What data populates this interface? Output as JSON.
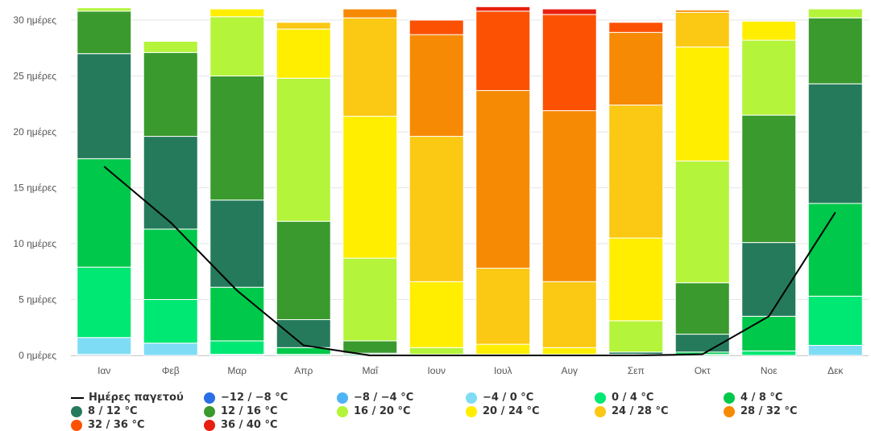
{
  "chart_data": {
    "type": "bar",
    "stacked": true,
    "categories": [
      "Ιαν",
      "Φεβ",
      "Μαρ",
      "Απρ",
      "Μαΐ",
      "Ιουν",
      "Ιουλ",
      "Αυγ",
      "Σεπ",
      "Οκτ",
      "Νοε",
      "Δεκ"
    ],
    "ylim": [
      0,
      31
    ],
    "yticks": [
      "0 ημέρες",
      "5 ημέρες",
      "10 ημέρες",
      "15 ημέρες",
      "20 ημέρες",
      "25 ημέρες",
      "30 ημέρες"
    ],
    "ytick_values": [
      0,
      5,
      10,
      15,
      20,
      25,
      30
    ],
    "series": [
      {
        "name": "−12 / −8 °C",
        "color": "#2b6fe6",
        "values": [
          0,
          0,
          0,
          0,
          0,
          0,
          0,
          0,
          0,
          0,
          0,
          0
        ]
      },
      {
        "name": "−8 / −4 °C",
        "color": "#4fb4f5",
        "values": [
          0.1,
          0,
          0,
          0,
          0,
          0,
          0,
          0,
          0,
          0,
          0,
          0
        ]
      },
      {
        "name": "−4 / 0 °C",
        "color": "#7fdcf5",
        "values": [
          1.5,
          1.1,
          0.1,
          0,
          0,
          0,
          0,
          0,
          0,
          0,
          0,
          0.9
        ]
      },
      {
        "name": "0 / 4 °C",
        "color": "#00e874",
        "values": [
          6.3,
          3.9,
          1.2,
          0.1,
          0,
          0,
          0,
          0,
          0,
          0.1,
          0.4,
          4.4
        ]
      },
      {
        "name": "4 / 8 °C",
        "color": "#00c84a",
        "values": [
          9.7,
          6.3,
          4.8,
          0.6,
          0.1,
          0,
          0,
          0,
          0.1,
          0.2,
          3.1,
          8.3
        ]
      },
      {
        "name": "8 / 12 °C",
        "color": "#257a5c",
        "values": [
          9.4,
          8.3,
          7.8,
          2.5,
          0.1,
          0,
          0,
          0,
          0.2,
          1.6,
          6.6,
          10.7
        ]
      },
      {
        "name": "12 / 16 °C",
        "color": "#3a9a2e",
        "values": [
          3.8,
          7.5,
          11.1,
          8.8,
          1.1,
          0.1,
          0,
          0,
          0,
          4.6,
          11.4,
          5.9
        ]
      },
      {
        "name": "16 / 20 °C",
        "color": "#b4f43a",
        "values": [
          0.3,
          1.0,
          5.3,
          12.8,
          7.4,
          0.6,
          0.1,
          0.1,
          2.8,
          10.9,
          6.7,
          0.8
        ]
      },
      {
        "name": "20 / 24 °C",
        "color": "#ffee00",
        "values": [
          0,
          0,
          0.7,
          4.4,
          12.7,
          5.9,
          0.9,
          0.6,
          7.4,
          10.2,
          1.7,
          0
        ]
      },
      {
        "name": "24 / 28 °C",
        "color": "#fbc814",
        "values": [
          0,
          0,
          0,
          0.6,
          8.8,
          13.0,
          6.8,
          5.9,
          11.9,
          3.1,
          0,
          0
        ]
      },
      {
        "name": "28 / 32 °C",
        "color": "#f78a04",
        "values": [
          0,
          0,
          0,
          0,
          0.8,
          9.1,
          15.9,
          15.3,
          6.5,
          0.2,
          0,
          0
        ]
      },
      {
        "name": "32 / 36 °C",
        "color": "#fc5103",
        "values": [
          0,
          0,
          0,
          0,
          0,
          1.3,
          7.1,
          8.6,
          0.9,
          0,
          0,
          0
        ]
      },
      {
        "name": "36 / 40 °C",
        "color": "#e8200f",
        "values": [
          0,
          0,
          0,
          0,
          0,
          0,
          0.4,
          0.5,
          0,
          0,
          0,
          0
        ]
      }
    ],
    "line_series": {
      "name": "Ημέρες παγετού",
      "color": "#000000",
      "values": [
        16.9,
        11.9,
        5.8,
        0.9,
        0,
        0,
        0,
        0,
        0,
        0.1,
        3.5,
        12.8
      ]
    },
    "legend_position": "bottom",
    "grid": true
  }
}
